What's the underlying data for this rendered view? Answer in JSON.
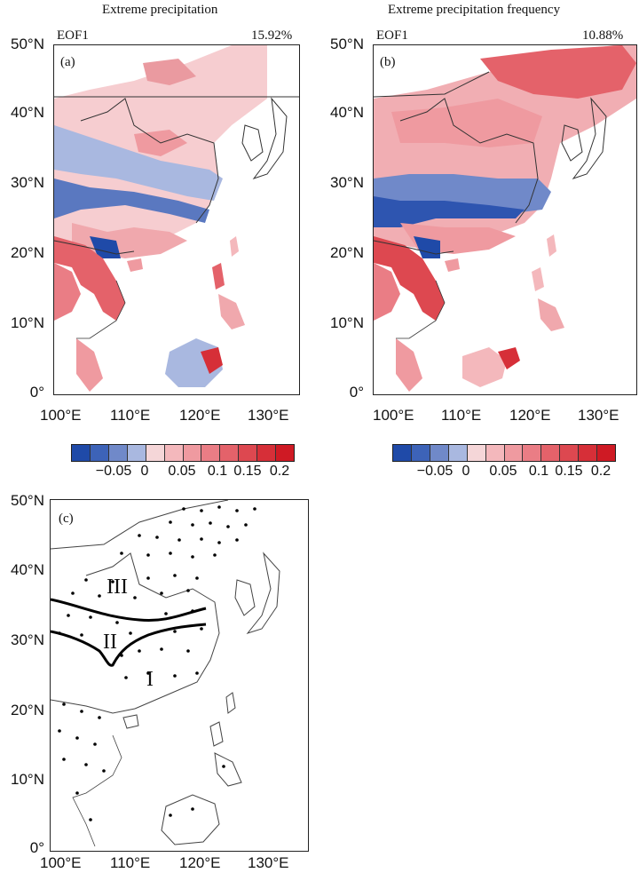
{
  "panel_a": {
    "title": "Extreme precipitation",
    "eof_label": "EOF1",
    "percent": "15.92%",
    "panel_tag": "(a)"
  },
  "panel_b": {
    "title": "Extreme precipitation frequency",
    "eof_label": "EOF1",
    "percent": "10.88%",
    "panel_tag": "(b)"
  },
  "panel_c": {
    "panel_tag": "(c)",
    "regions": [
      "I",
      "II",
      "III"
    ]
  },
  "axes": {
    "lat_labels": [
      "50°N",
      "40°N",
      "30°N",
      "20°N",
      "10°N",
      "0°"
    ],
    "lon_labels": [
      "100°E",
      "110°E",
      "120°E",
      "130°E"
    ]
  },
  "colorbar": {
    "labels": [
      "−0.05",
      "0",
      "0.05",
      "0.1",
      "0.15",
      "0.2"
    ],
    "colors": [
      "#1f4aa8",
      "#3d63b8",
      "#7089c9",
      "#a9b8e0",
      "#f5d6d8",
      "#f4b8bc",
      "#ef9aa0",
      "#ea7d85",
      "#e4626a",
      "#dd4850",
      "#d62f38",
      "#cf1a24"
    ]
  }
}
